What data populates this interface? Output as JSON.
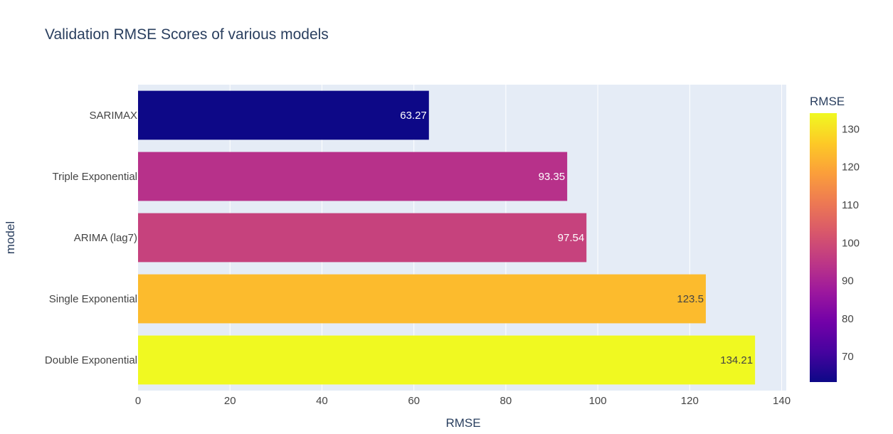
{
  "chart_data": {
    "type": "bar",
    "orientation": "horizontal",
    "title": "Validation RMSE Scores of various models",
    "xlabel": "RMSE",
    "ylabel": "model",
    "xlim": [
      0,
      141
    ],
    "xticks": [
      0,
      20,
      40,
      60,
      80,
      100,
      120,
      140
    ],
    "grid": true,
    "categories": [
      "SARIMAX",
      "Triple Exponential",
      "ARIMA (lag7)",
      "Single Exponential",
      "Double Exponential"
    ],
    "values": [
      63.27,
      93.35,
      97.54,
      123.5,
      134.21
    ],
    "data_labels": [
      "63.27",
      "93.35",
      "97.54",
      "123.5",
      "134.21"
    ],
    "colorbar": {
      "title": "RMSE",
      "range": [
        63.27,
        134.21
      ],
      "ticks": [
        70,
        80,
        90,
        100,
        110,
        120,
        130
      ],
      "colorscale": "plasma"
    }
  },
  "colors": {
    "plot_background": "#e5ecf6",
    "grid": "#ffffff",
    "text": "#2a3f5f",
    "axis_text": "#444444",
    "plasma": [
      "#0d0887",
      "#46039f",
      "#7201a8",
      "#9c179e",
      "#bd3786",
      "#d8576b",
      "#ed7953",
      "#fb9f3a",
      "#fdca26",
      "#f0f921"
    ]
  }
}
